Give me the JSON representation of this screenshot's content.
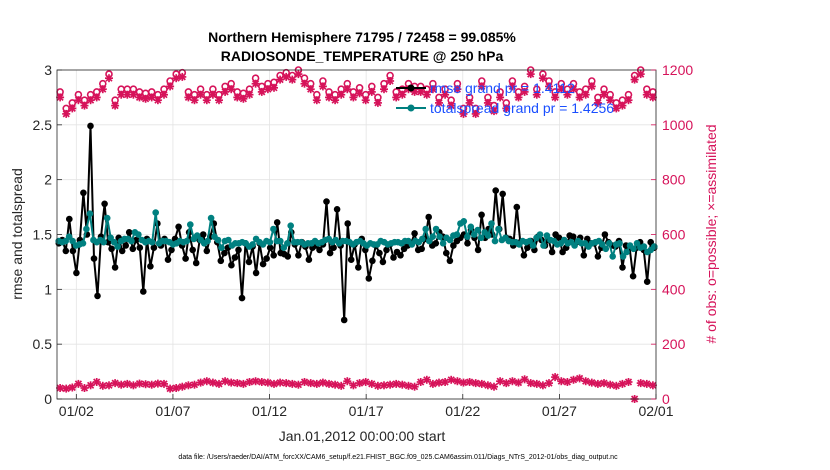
{
  "chart_data": {
    "type": "line",
    "title_line1": "Northern Hemisphere 71795 / 72458 = 99.085%",
    "title_line2": "RADIOSONDE_TEMPERATURE @ 250 hPa",
    "xlabel": "Jan.01,2012 00:00:00 start",
    "ylabel_left": "rmse and totalspread",
    "ylabel_right": "# of obs: o=possible; ×=assimilated",
    "xlim": [
      0.5,
      31.5
    ],
    "ylim_left": [
      0,
      3
    ],
    "ylim_right": [
      0,
      1200
    ],
    "x_ticks": [
      {
        "x": 1.5,
        "label": "01/02"
      },
      {
        "x": 6.5,
        "label": "01/07"
      },
      {
        "x": 11.5,
        "label": "01/12"
      },
      {
        "x": 16.5,
        "label": "01/17"
      },
      {
        "x": 21.5,
        "label": "01/22"
      },
      {
        "x": 26.5,
        "label": "01/27"
      },
      {
        "x": 31.5,
        "label": "02/01"
      }
    ],
    "y_ticks_left": [
      {
        "v": 0,
        "label": "0"
      },
      {
        "v": 0.5,
        "label": "0.5"
      },
      {
        "v": 1,
        "label": "1"
      },
      {
        "v": 1.5,
        "label": "1.5"
      },
      {
        "v": 2,
        "label": "2"
      },
      {
        "v": 2.5,
        "label": "2.5"
      },
      {
        "v": 3,
        "label": "3"
      }
    ],
    "y_ticks_right": [
      {
        "v": 0,
        "label": "0"
      },
      {
        "v": 200,
        "label": "200"
      },
      {
        "v": 400,
        "label": "400"
      },
      {
        "v": 600,
        "label": "600"
      },
      {
        "v": 800,
        "label": "800"
      },
      {
        "v": 1000,
        "label": "1000"
      },
      {
        "v": 1200,
        "label": "1200"
      }
    ],
    "grid": true,
    "legend_position": "top-right",
    "legend": [
      {
        "label": "rmse grand pr = 1.4112",
        "color": "#000000"
      },
      {
        "label": "totalspread grand pr = 1.4256",
        "color": "#008080"
      }
    ],
    "colors": {
      "rmse": "#000000",
      "spread": "#008080",
      "obs": "#d6135a"
    },
    "series": [
      {
        "name": "rmse grand pr = 1.4112",
        "axis": "left",
        "color": "#000000",
        "y": [
          1.42,
          1.45,
          1.35,
          1.64,
          1.35,
          1.15,
          1.45,
          1.88,
          1.5,
          2.49,
          1.28,
          0.94,
          1.48,
          1.78,
          1.43,
          1.37,
          1.2,
          1.47,
          1.35,
          1.4,
          1.52,
          1.37,
          1.45,
          1.38,
          0.98,
          1.46,
          1.21,
          1.38,
          1.6,
          1.4,
          1.46,
          1.27,
          1.36,
          1.46,
          1.57,
          1.4,
          1.28,
          1.52,
          1.36,
          1.24,
          1.45,
          1.5,
          1.35,
          1.48,
          1.6,
          1.43,
          1.26,
          1.33,
          1.38,
          1.22,
          1.29,
          1.36,
          0.92,
          1.42,
          1.25,
          1.39,
          1.15,
          1.42,
          1.23,
          1.28,
          1.38,
          1.31,
          1.61,
          1.33,
          1.32,
          1.3,
          1.52,
          1.41,
          1.31,
          1.43,
          1.39,
          1.27,
          1.38,
          1.4,
          1.36,
          1.41,
          1.8,
          1.33,
          1.38,
          1.73,
          1.4,
          0.72,
          1.6,
          1.27,
          1.41,
          1.2,
          1.46,
          1.36,
          1.1,
          1.26,
          1.4,
          1.33,
          1.25,
          1.36,
          1.41,
          1.29,
          1.34,
          1.31,
          1.37,
          1.4,
          1.42,
          1.51,
          1.36,
          1.37,
          1.46,
          1.66,
          1.4,
          1.42,
          1.52,
          1.48,
          1.33,
          1.26,
          1.4,
          1.44,
          1.47,
          1.5,
          1.42,
          1.54,
          1.47,
          1.36,
          1.68,
          1.47,
          1.55,
          1.5,
          1.9,
          1.55,
          1.87,
          1.47,
          1.46,
          1.4,
          1.75,
          1.43,
          1.31,
          1.38,
          1.44,
          1.36,
          1.48,
          1.45,
          1.4,
          1.45,
          1.34,
          1.5,
          1.47,
          1.34,
          1.38,
          1.49,
          1.48,
          1.43,
          1.47,
          1.31,
          1.46,
          1.42,
          1.42,
          1.3,
          1.38,
          1.5,
          1.43,
          1.4,
          1.39,
          1.44,
          1.2,
          1.4,
          1.38,
          1.12,
          1.38,
          1.43,
          1.36,
          1.07,
          1.43,
          1.38
        ]
      },
      {
        "name": "totalspread grand pr = 1.4256",
        "axis": "left",
        "color": "#008080",
        "y": [
          1.44,
          1.43,
          1.44,
          1.48,
          1.44,
          1.4,
          1.41,
          1.42,
          1.55,
          1.69,
          1.45,
          1.43,
          1.45,
          1.43,
          1.65,
          1.47,
          1.43,
          1.39,
          1.44,
          1.46,
          1.46,
          1.44,
          1.52,
          1.5,
          1.45,
          1.43,
          1.44,
          1.43,
          1.7,
          1.42,
          1.44,
          1.44,
          1.43,
          1.41,
          1.42,
          1.44,
          1.43,
          1.44,
          1.59,
          1.46,
          1.49,
          1.45,
          1.42,
          1.44,
          1.65,
          1.48,
          1.45,
          1.38,
          1.44,
          1.45,
          1.4,
          1.42,
          1.42,
          1.43,
          1.42,
          1.39,
          1.41,
          1.46,
          1.43,
          1.41,
          1.44,
          1.43,
          1.55,
          1.44,
          1.44,
          1.38,
          1.42,
          1.58,
          1.43,
          1.43,
          1.43,
          1.41,
          1.42,
          1.42,
          1.44,
          1.42,
          1.43,
          1.45,
          1.46,
          1.43,
          1.45,
          1.42,
          1.44,
          1.44,
          1.43,
          1.41,
          1.43,
          1.44,
          1.42,
          1.4,
          1.42,
          1.41,
          1.41,
          1.44,
          1.43,
          1.41,
          1.42,
          1.43,
          1.43,
          1.42,
          1.44,
          1.44,
          1.41,
          1.44,
          1.43,
          1.46,
          1.55,
          1.44,
          1.48,
          1.55,
          1.48,
          1.42,
          1.47,
          1.45,
          1.49,
          1.5,
          1.6,
          1.62,
          1.48,
          1.57,
          1.5,
          1.54,
          1.47,
          1.52,
          1.49,
          1.6,
          1.44,
          1.55,
          1.45,
          1.47,
          1.44,
          1.43,
          1.43,
          1.41,
          1.44,
          1.43,
          1.44,
          1.4,
          1.47,
          1.5,
          1.4,
          1.49,
          1.45,
          1.44,
          1.41,
          1.42,
          1.45,
          1.42,
          1.43,
          1.4,
          1.44,
          1.42,
          1.42,
          1.39,
          1.42,
          1.43,
          1.44,
          1.41,
          1.37,
          1.42,
          1.3,
          1.41,
          1.42,
          1.3,
          1.34,
          1.4,
          1.37,
          1.42,
          1.38,
          1.39,
          1.34,
          1.36,
          1.39
        ]
      },
      {
        "name": "possible",
        "axis": "right",
        "color": "#d6135a",
        "y": [
          1120,
          1060,
          1080,
          1110,
          1090,
          1110,
          1120,
          1150,
          1185,
          1090,
          1130,
          1130,
          1130,
          1120,
          1115,
          1120,
          1110,
          1130,
          1160,
          1185,
          1190,
          1120,
          1110,
          1130,
          1110,
          1130,
          1110,
          1140,
          1150,
          1120,
          1115,
          1130,
          1170,
          1140,
          1150,
          1155,
          1180,
          1190,
          1180,
          1200,
          1170,
          1150,
          1110,
          1160,
          1120,
          1110,
          1130,
          1150,
          1120,
          1135,
          1110,
          1140,
          1100,
          1150,
          1180,
          1120,
          1130,
          1150,
          1140,
          1140,
          1130,
          1150,
          1100,
          1130,
          1090,
          1150,
          1060,
          1100,
          1060,
          1160,
          1100,
          1070,
          1120,
          1080,
          1160,
          1120,
          1140,
          1200,
          1130,
          1185,
          1160,
          1120,
          1150,
          1130,
          1150,
          1120,
          1130,
          1160,
          1100,
          1130,
          1110,
          1080,
          1090,
          1110,
          1180,
          1200,
          1130,
          1120
        ]
      },
      {
        "name": "assimilated",
        "axis": "right",
        "color": "#d6135a",
        "y": [
          1100,
          1040,
          1060,
          1090,
          1070,
          1090,
          1100,
          1130,
          1170,
          1070,
          1110,
          1110,
          1110,
          1100,
          1095,
          1100,
          1090,
          1110,
          1140,
          1170,
          1175,
          1100,
          1090,
          1110,
          1090,
          1110,
          1090,
          1120,
          1130,
          1100,
          1095,
          1110,
          1150,
          1120,
          1130,
          1135,
          1165,
          1175,
          1165,
          1185,
          1150,
          1130,
          1090,
          1140,
          1100,
          1090,
          1110,
          1130,
          1100,
          1115,
          1090,
          1120,
          1080,
          1130,
          1160,
          1100,
          1110,
          1130,
          1120,
          1120,
          1110,
          1130,
          1080,
          1110,
          1070,
          1130,
          1040,
          1080,
          1040,
          1140,
          1080,
          1050,
          1100,
          1060,
          1140,
          1100,
          1120,
          1185,
          1110,
          1170,
          1140,
          1100,
          1130,
          1110,
          1130,
          1100,
          1110,
          1140,
          1080,
          1110,
          1090,
          1060,
          1070,
          1090,
          1165,
          1185,
          1110,
          1100
        ]
      },
      {
        "name": "assimilated-bottom",
        "axis": "right",
        "color": "#d6135a",
        "y": [
          40,
          38,
          42,
          55,
          40,
          50,
          62,
          48,
          50,
          58,
          52,
          55,
          50,
          56,
          54,
          52,
          56,
          55,
          38,
          40,
          45,
          50,
          52,
          60,
          65,
          60,
          55,
          65,
          60,
          58,
          55,
          62,
          65,
          62,
          60,
          55,
          60,
          58,
          55,
          52,
          62,
          58,
          55,
          60,
          55,
          52,
          48,
          65,
          50,
          58,
          62,
          55,
          48,
          50,
          52,
          55,
          52,
          48,
          45,
          62,
          70,
          55,
          60,
          62,
          70,
          65,
          60,
          62,
          58,
          55,
          50,
          45,
          65,
          58,
          65,
          60,
          72,
          58,
          55,
          50,
          58,
          80,
          65,
          62,
          70,
          75,
          65,
          60,
          55,
          58,
          52,
          48,
          55,
          62,
          0,
          58,
          55,
          50
        ]
      }
    ],
    "footer": "data file: /Users/raeder/DAI/ATM_forcXX/CAM6_setup/f.e21.FHIST_BGC.f09_025.CAM6assim.011/Diags_NTrS_2012-01/obs_diag_output.nc"
  }
}
